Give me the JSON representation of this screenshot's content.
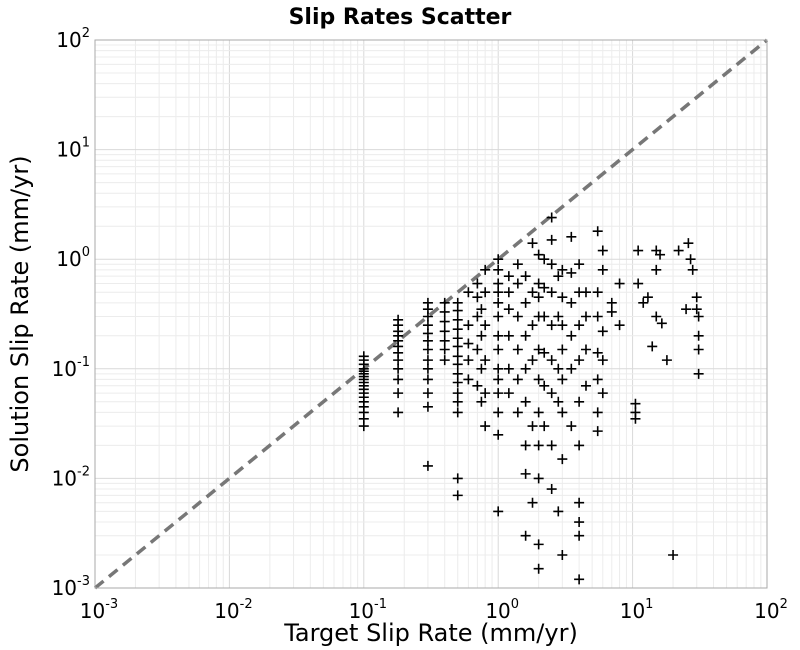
{
  "chart_data": {
    "type": "scatter",
    "title": "Slip Rates Scatter",
    "xlabel": "Target Slip Rate (mm/yr)",
    "ylabel": "Solution Slip Rate (mm/yr)",
    "xscale": "log",
    "yscale": "log",
    "xlim": [
      0.001,
      100
    ],
    "ylim": [
      0.001,
      100
    ],
    "grid": true,
    "marker": "+",
    "marker_color": "#000000",
    "reference_line": {
      "style": "dashed",
      "color": "#777777",
      "x": [
        0.001,
        100
      ],
      "y": [
        0.001,
        100
      ]
    },
    "x_tick_labels": [
      {
        "base": "10",
        "exp": "-3"
      },
      {
        "base": "10",
        "exp": "-2"
      },
      {
        "base": "10",
        "exp": "-1"
      },
      {
        "base": "10",
        "exp": "0"
      },
      {
        "base": "10",
        "exp": "1"
      },
      {
        "base": "10",
        "exp": "2"
      }
    ],
    "y_tick_labels": [
      {
        "base": "10",
        "exp": "-3"
      },
      {
        "base": "10",
        "exp": "-2"
      },
      {
        "base": "10",
        "exp": "-1"
      },
      {
        "base": "10",
        "exp": "0"
      },
      {
        "base": "10",
        "exp": "1"
      },
      {
        "base": "10",
        "exp": "2"
      }
    ],
    "points": [
      {
        "x": 0.1,
        "y": 0.03
      },
      {
        "x": 0.1,
        "y": 0.035
      },
      {
        "x": 0.1,
        "y": 0.04
      },
      {
        "x": 0.1,
        "y": 0.045
      },
      {
        "x": 0.1,
        "y": 0.05
      },
      {
        "x": 0.1,
        "y": 0.055
      },
      {
        "x": 0.1,
        "y": 0.06
      },
      {
        "x": 0.1,
        "y": 0.065
      },
      {
        "x": 0.1,
        "y": 0.07
      },
      {
        "x": 0.1,
        "y": 0.075
      },
      {
        "x": 0.1,
        "y": 0.08
      },
      {
        "x": 0.1,
        "y": 0.085
      },
      {
        "x": 0.1,
        "y": 0.09
      },
      {
        "x": 0.1,
        "y": 0.095
      },
      {
        "x": 0.1,
        "y": 0.1
      },
      {
        "x": 0.1,
        "y": 0.11
      },
      {
        "x": 0.1,
        "y": 0.12
      },
      {
        "x": 0.1,
        "y": 0.13
      },
      {
        "x": 0.18,
        "y": 0.04
      },
      {
        "x": 0.18,
        "y": 0.06
      },
      {
        "x": 0.18,
        "y": 0.08
      },
      {
        "x": 0.18,
        "y": 0.1
      },
      {
        "x": 0.18,
        "y": 0.12
      },
      {
        "x": 0.18,
        "y": 0.14
      },
      {
        "x": 0.18,
        "y": 0.16
      },
      {
        "x": 0.18,
        "y": 0.18
      },
      {
        "x": 0.18,
        "y": 0.2
      },
      {
        "x": 0.18,
        "y": 0.22
      },
      {
        "x": 0.18,
        "y": 0.25
      },
      {
        "x": 0.18,
        "y": 0.28
      },
      {
        "x": 0.3,
        "y": 0.045
      },
      {
        "x": 0.3,
        "y": 0.06
      },
      {
        "x": 0.3,
        "y": 0.08
      },
      {
        "x": 0.3,
        "y": 0.1
      },
      {
        "x": 0.3,
        "y": 0.12
      },
      {
        "x": 0.3,
        "y": 0.15
      },
      {
        "x": 0.3,
        "y": 0.18
      },
      {
        "x": 0.3,
        "y": 0.21
      },
      {
        "x": 0.3,
        "y": 0.25
      },
      {
        "x": 0.3,
        "y": 0.3
      },
      {
        "x": 0.3,
        "y": 0.35
      },
      {
        "x": 0.3,
        "y": 0.4
      },
      {
        "x": 0.3,
        "y": 0.013
      },
      {
        "x": 0.4,
        "y": 0.12
      },
      {
        "x": 0.4,
        "y": 0.15
      },
      {
        "x": 0.4,
        "y": 0.18
      },
      {
        "x": 0.4,
        "y": 0.22
      },
      {
        "x": 0.4,
        "y": 0.27
      },
      {
        "x": 0.4,
        "y": 0.33
      },
      {
        "x": 0.4,
        "y": 0.4
      },
      {
        "x": 0.5,
        "y": 0.04
      },
      {
        "x": 0.5,
        "y": 0.05
      },
      {
        "x": 0.5,
        "y": 0.06
      },
      {
        "x": 0.5,
        "y": 0.075
      },
      {
        "x": 0.5,
        "y": 0.09
      },
      {
        "x": 0.5,
        "y": 0.11
      },
      {
        "x": 0.5,
        "y": 0.13
      },
      {
        "x": 0.5,
        "y": 0.16
      },
      {
        "x": 0.5,
        "y": 0.19
      },
      {
        "x": 0.5,
        "y": 0.23
      },
      {
        "x": 0.5,
        "y": 0.28
      },
      {
        "x": 0.5,
        "y": 0.34
      },
      {
        "x": 0.5,
        "y": 0.4
      },
      {
        "x": 0.5,
        "y": 0.01
      },
      {
        "x": 0.5,
        "y": 0.007
      },
      {
        "x": 0.6,
        "y": 0.08
      },
      {
        "x": 0.6,
        "y": 0.12
      },
      {
        "x": 0.6,
        "y": 0.17
      },
      {
        "x": 0.6,
        "y": 0.25
      },
      {
        "x": 0.6,
        "y": 0.5
      },
      {
        "x": 0.7,
        "y": 0.07
      },
      {
        "x": 0.7,
        "y": 0.15
      },
      {
        "x": 0.7,
        "y": 0.3
      },
      {
        "x": 0.7,
        "y": 0.45
      },
      {
        "x": 0.7,
        "y": 0.6
      },
      {
        "x": 0.75,
        "y": 0.05
      },
      {
        "x": 0.75,
        "y": 0.1
      },
      {
        "x": 0.75,
        "y": 0.2
      },
      {
        "x": 0.75,
        "y": 0.35
      },
      {
        "x": 0.8,
        "y": 0.03
      },
      {
        "x": 0.8,
        "y": 0.06
      },
      {
        "x": 0.8,
        "y": 0.12
      },
      {
        "x": 0.8,
        "y": 0.25
      },
      {
        "x": 0.8,
        "y": 0.5
      },
      {
        "x": 0.8,
        "y": 0.8
      },
      {
        "x": 1.0,
        "y": 0.005
      },
      {
        "x": 1.0,
        "y": 0.025
      },
      {
        "x": 1.0,
        "y": 0.04
      },
      {
        "x": 1.0,
        "y": 0.06
      },
      {
        "x": 1.0,
        "y": 0.08
      },
      {
        "x": 1.0,
        "y": 0.1
      },
      {
        "x": 1.0,
        "y": 0.15
      },
      {
        "x": 1.0,
        "y": 0.2
      },
      {
        "x": 1.0,
        "y": 0.3
      },
      {
        "x": 1.0,
        "y": 0.4
      },
      {
        "x": 1.0,
        "y": 0.5
      },
      {
        "x": 1.0,
        "y": 0.6
      },
      {
        "x": 1.0,
        "y": 0.8
      },
      {
        "x": 1.0,
        "y": 1.0
      },
      {
        "x": 1.2,
        "y": 0.06
      },
      {
        "x": 1.2,
        "y": 0.1
      },
      {
        "x": 1.2,
        "y": 0.2
      },
      {
        "x": 1.2,
        "y": 0.35
      },
      {
        "x": 1.2,
        "y": 0.5
      },
      {
        "x": 1.2,
        "y": 0.7
      },
      {
        "x": 1.4,
        "y": 0.04
      },
      {
        "x": 1.4,
        "y": 0.08
      },
      {
        "x": 1.4,
        "y": 0.15
      },
      {
        "x": 1.4,
        "y": 0.3
      },
      {
        "x": 1.4,
        "y": 0.6
      },
      {
        "x": 1.4,
        "y": 0.9
      },
      {
        "x": 1.6,
        "y": 0.003
      },
      {
        "x": 1.6,
        "y": 0.011
      },
      {
        "x": 1.6,
        "y": 0.02
      },
      {
        "x": 1.6,
        "y": 0.05
      },
      {
        "x": 1.6,
        "y": 0.1
      },
      {
        "x": 1.6,
        "y": 0.2
      },
      {
        "x": 1.6,
        "y": 0.4
      },
      {
        "x": 1.6,
        "y": 0.7
      },
      {
        "x": 1.8,
        "y": 0.006
      },
      {
        "x": 1.8,
        "y": 0.03
      },
      {
        "x": 1.8,
        "y": 0.12
      },
      {
        "x": 1.8,
        "y": 0.25
      },
      {
        "x": 1.8,
        "y": 0.5
      },
      {
        "x": 1.8,
        "y": 1.4
      },
      {
        "x": 2.0,
        "y": 0.0015
      },
      {
        "x": 2.0,
        "y": 0.0025
      },
      {
        "x": 2.0,
        "y": 0.01
      },
      {
        "x": 2.0,
        "y": 0.02
      },
      {
        "x": 2.0,
        "y": 0.04
      },
      {
        "x": 2.0,
        "y": 0.08
      },
      {
        "x": 2.0,
        "y": 0.15
      },
      {
        "x": 2.0,
        "y": 0.3
      },
      {
        "x": 2.0,
        "y": 0.45
      },
      {
        "x": 2.0,
        "y": 0.6
      },
      {
        "x": 2.0,
        "y": 1.1
      },
      {
        "x": 2.2,
        "y": 0.03
      },
      {
        "x": 2.2,
        "y": 0.07
      },
      {
        "x": 2.2,
        "y": 0.14
      },
      {
        "x": 2.2,
        "y": 0.3
      },
      {
        "x": 2.2,
        "y": 0.55
      },
      {
        "x": 2.2,
        "y": 1.0
      },
      {
        "x": 2.5,
        "y": 0.008
      },
      {
        "x": 2.5,
        "y": 0.02
      },
      {
        "x": 2.5,
        "y": 0.06
      },
      {
        "x": 2.5,
        "y": 0.12
      },
      {
        "x": 2.5,
        "y": 0.25
      },
      {
        "x": 2.5,
        "y": 0.5
      },
      {
        "x": 2.5,
        "y": 0.9
      },
      {
        "x": 2.5,
        "y": 1.5
      },
      {
        "x": 2.5,
        "y": 2.4
      },
      {
        "x": 2.8,
        "y": 0.005
      },
      {
        "x": 2.8,
        "y": 0.05
      },
      {
        "x": 2.8,
        "y": 0.1
      },
      {
        "x": 2.8,
        "y": 0.3
      },
      {
        "x": 2.8,
        "y": 0.7
      },
      {
        "x": 3.0,
        "y": 0.002
      },
      {
        "x": 3.0,
        "y": 0.015
      },
      {
        "x": 3.0,
        "y": 0.04
      },
      {
        "x": 3.0,
        "y": 0.08
      },
      {
        "x": 3.0,
        "y": 0.15
      },
      {
        "x": 3.0,
        "y": 0.25
      },
      {
        "x": 3.0,
        "y": 0.45
      },
      {
        "x": 3.0,
        "y": 0.8
      },
      {
        "x": 3.5,
        "y": 0.03
      },
      {
        "x": 3.5,
        "y": 0.1
      },
      {
        "x": 3.5,
        "y": 0.2
      },
      {
        "x": 3.5,
        "y": 0.4
      },
      {
        "x": 3.5,
        "y": 0.75
      },
      {
        "x": 3.5,
        "y": 1.6
      },
      {
        "x": 4.0,
        "y": 0.0012
      },
      {
        "x": 4.0,
        "y": 0.003
      },
      {
        "x": 4.0,
        "y": 0.004
      },
      {
        "x": 4.0,
        "y": 0.006
      },
      {
        "x": 4.0,
        "y": 0.02
      },
      {
        "x": 4.0,
        "y": 0.05
      },
      {
        "x": 4.0,
        "y": 0.12
      },
      {
        "x": 4.0,
        "y": 0.25
      },
      {
        "x": 4.0,
        "y": 0.5
      },
      {
        "x": 4.0,
        "y": 0.9
      },
      {
        "x": 4.5,
        "y": 0.07
      },
      {
        "x": 4.5,
        "y": 0.15
      },
      {
        "x": 4.5,
        "y": 0.3
      },
      {
        "x": 4.5,
        "y": 0.5
      },
      {
        "x": 5.5,
        "y": 0.027
      },
      {
        "x": 5.5,
        "y": 0.04
      },
      {
        "x": 5.5,
        "y": 0.08
      },
      {
        "x": 5.5,
        "y": 0.14
      },
      {
        "x": 5.5,
        "y": 0.3
      },
      {
        "x": 5.5,
        "y": 0.5
      },
      {
        "x": 5.5,
        "y": 1.8
      },
      {
        "x": 6.0,
        "y": 0.06
      },
      {
        "x": 6.0,
        "y": 0.12
      },
      {
        "x": 6.0,
        "y": 0.22
      },
      {
        "x": 6.0,
        "y": 0.8
      },
      {
        "x": 6.0,
        "y": 1.2
      },
      {
        "x": 7.0,
        "y": 0.33
      },
      {
        "x": 7.0,
        "y": 0.4
      },
      {
        "x": 8.0,
        "y": 0.25
      },
      {
        "x": 8.0,
        "y": 0.6
      },
      {
        "x": 10.5,
        "y": 0.035
      },
      {
        "x": 10.5,
        "y": 0.04
      },
      {
        "x": 10.5,
        "y": 0.048
      },
      {
        "x": 11.0,
        "y": 1.2
      },
      {
        "x": 11.0,
        "y": 0.6
      },
      {
        "x": 12.0,
        "y": 0.4
      },
      {
        "x": 13.0,
        "y": 0.45
      },
      {
        "x": 14.0,
        "y": 0.16
      },
      {
        "x": 15.0,
        "y": 0.3
      },
      {
        "x": 15.0,
        "y": 0.8
      },
      {
        "x": 15.0,
        "y": 1.2
      },
      {
        "x": 16.0,
        "y": 1.1
      },
      {
        "x": 16.5,
        "y": 0.26
      },
      {
        "x": 18.0,
        "y": 0.12
      },
      {
        "x": 20.0,
        "y": 0.002
      },
      {
        "x": 22.0,
        "y": 1.2
      },
      {
        "x": 25.0,
        "y": 0.35
      },
      {
        "x": 26.0,
        "y": 1.4
      },
      {
        "x": 27.0,
        "y": 1.0
      },
      {
        "x": 28.0,
        "y": 0.8
      },
      {
        "x": 30.0,
        "y": 0.45
      },
      {
        "x": 30.0,
        "y": 0.35
      },
      {
        "x": 31.0,
        "y": 0.3
      },
      {
        "x": 31.0,
        "y": 0.2
      },
      {
        "x": 31.0,
        "y": 0.15
      },
      {
        "x": 31.0,
        "y": 0.09
      }
    ]
  }
}
